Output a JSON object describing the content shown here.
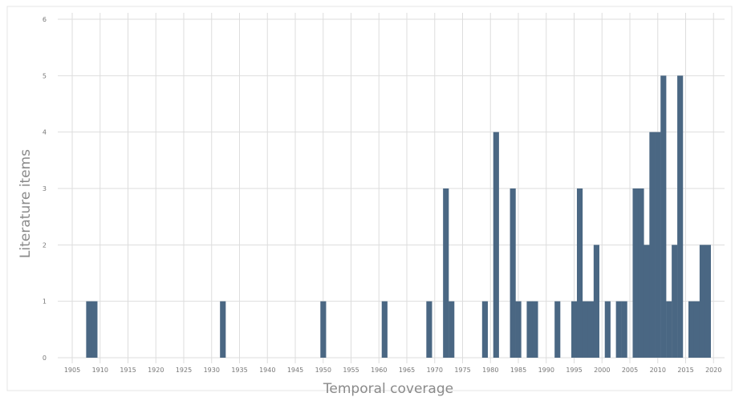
{
  "chart_data": {
    "type": "bar",
    "title": "",
    "xlabel": "Temporal coverage",
    "ylabel": "Literature items",
    "xlim": [
      1900,
      2020
    ],
    "ylim": [
      0,
      6
    ],
    "grid": true,
    "x_ticks": [
      "1905",
      "1910",
      "1915",
      "1920",
      "1925",
      "1930",
      "1935",
      "1940",
      "1945",
      "1950",
      "1955",
      "1960",
      "1965",
      "1970",
      "1975",
      "1980",
      "1985",
      "1990",
      "1995",
      "2000",
      "2005",
      "2010",
      "2015",
      "2020"
    ],
    "y_ticks": [
      "0",
      "1",
      "2",
      "3",
      "4",
      "5",
      "6"
    ],
    "bar_color": "#4a6783",
    "x": [
      1908,
      1909,
      1932,
      1950,
      1961,
      1969,
      1972,
      1973,
      1979,
      1981,
      1984,
      1985,
      1987,
      1988,
      1992,
      1995,
      1996,
      1997,
      1998,
      1999,
      2001,
      2003,
      2004,
      2006,
      2007,
      2008,
      2009,
      2010,
      2011,
      2012,
      2013,
      2014,
      2016,
      2017,
      2018,
      2019
    ],
    "values": [
      1,
      1,
      1,
      1,
      1,
      1,
      3,
      1,
      1,
      4,
      3,
      1,
      1,
      1,
      1,
      1,
      3,
      1,
      1,
      2,
      1,
      1,
      1,
      3,
      3,
      2,
      4,
      4,
      5,
      1,
      2,
      5,
      1,
      1,
      2,
      2
    ]
  }
}
